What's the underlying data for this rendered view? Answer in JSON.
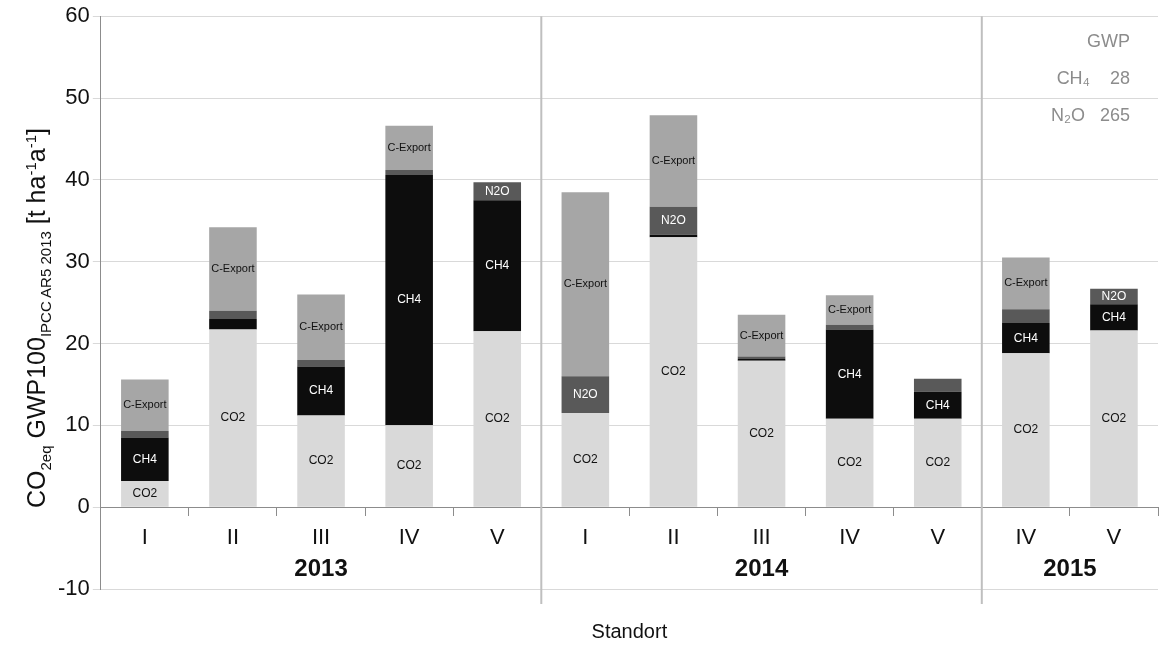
{
  "chart_data": {
    "type": "bar",
    "stacked": true,
    "xlabel": "Standort",
    "ylabel": "CO$_{2eq}$  GWP100$_{IPCC AR5 2013}$  [t ha$^{-1}$a$^{-1}$]",
    "categories": [
      "I",
      "II",
      "III",
      "IV",
      "V",
      "I",
      "II",
      "III",
      "IV",
      "V",
      "IV",
      "V"
    ],
    "series": [
      {
        "name": "CO2",
        "color": "#d9d9d9",
        "values": [
          3.2,
          21.7,
          11.2,
          10.0,
          21.5,
          11.5,
          33.0,
          17.9,
          10.8,
          10.8,
          18.8,
          21.6
        ]
      },
      {
        "name": "CH4",
        "color": "#0d0d0d",
        "values": [
          5.3,
          1.3,
          6.0,
          30.6,
          16.0,
          0,
          0.3,
          0.2,
          10.9,
          3.3,
          3.7,
          3.2
        ]
      },
      {
        "name": "N2O",
        "color": "#595959",
        "values": [
          0.8,
          1.0,
          0.8,
          0.6,
          2.2,
          4.5,
          3.4,
          0.3,
          0.6,
          1.6,
          1.7,
          1.9
        ]
      },
      {
        "name": "C-Export",
        "color": "#a6a6a6",
        "values": [
          6.3,
          10.2,
          8.0,
          5.4,
          null,
          22.5,
          11.2,
          5.1,
          3.6,
          null,
          6.3,
          null
        ]
      }
    ],
    "ylim": [
      -10,
      60
    ],
    "yticks": [
      -10,
      0,
      10,
      20,
      30,
      40,
      50,
      60
    ],
    "grid": "y",
    "legend": false,
    "annotations": [
      "2013",
      "2014",
      "2015",
      "GWP",
      "CH₄    28",
      "N₂O   265"
    ]
  }
}
